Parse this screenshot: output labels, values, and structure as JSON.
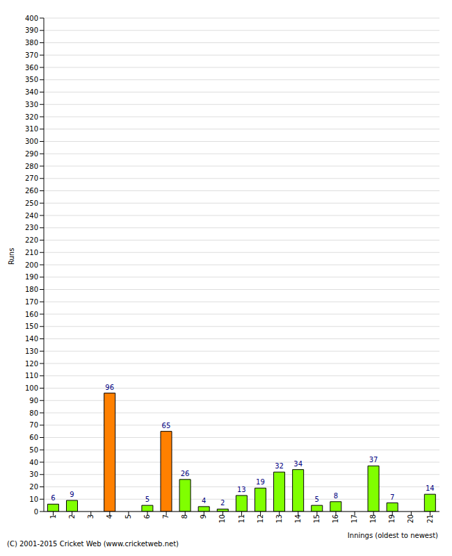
{
  "chart_data": {
    "type": "bar",
    "x_label": "Innings (oldest to newest)",
    "y_label": "Runs",
    "annotations": [
      "(C) 2001-2015 Cricket Web (www.cricketweb.net)"
    ],
    "categories": [
      "1",
      "2",
      "3",
      "4",
      "5",
      "6",
      "7",
      "8",
      "9",
      "10",
      "11",
      "12",
      "13",
      "14",
      "15",
      "16",
      "17",
      "18",
      "19",
      "20",
      "21"
    ],
    "values": [
      6,
      9,
      0,
      96,
      0,
      5,
      65,
      26,
      4,
      2,
      13,
      19,
      32,
      34,
      5,
      8,
      0,
      37,
      7,
      0,
      14
    ],
    "colors": [
      "#80ff00",
      "#80ff00",
      "#80ff00",
      "#ff8000",
      "#80ff00",
      "#80ff00",
      "#ff8000",
      "#80ff00",
      "#80ff00",
      "#80ff00",
      "#80ff00",
      "#80ff00",
      "#80ff00",
      "#80ff00",
      "#80ff00",
      "#80ff00",
      "#80ff00",
      "#80ff00",
      "#80ff00",
      "#80ff00",
      "#80ff00"
    ],
    "ylim": [
      0,
      400
    ],
    "yticks": [
      0,
      10,
      20,
      30,
      40,
      50,
      60,
      70,
      80,
      90,
      100,
      110,
      120,
      130,
      140,
      150,
      160,
      170,
      180,
      190,
      200,
      210,
      220,
      230,
      240,
      250,
      260,
      270,
      280,
      290,
      300,
      310,
      320,
      330,
      340,
      350,
      360,
      370,
      380,
      390,
      400
    ],
    "grid": true,
    "data_labels": true
  }
}
